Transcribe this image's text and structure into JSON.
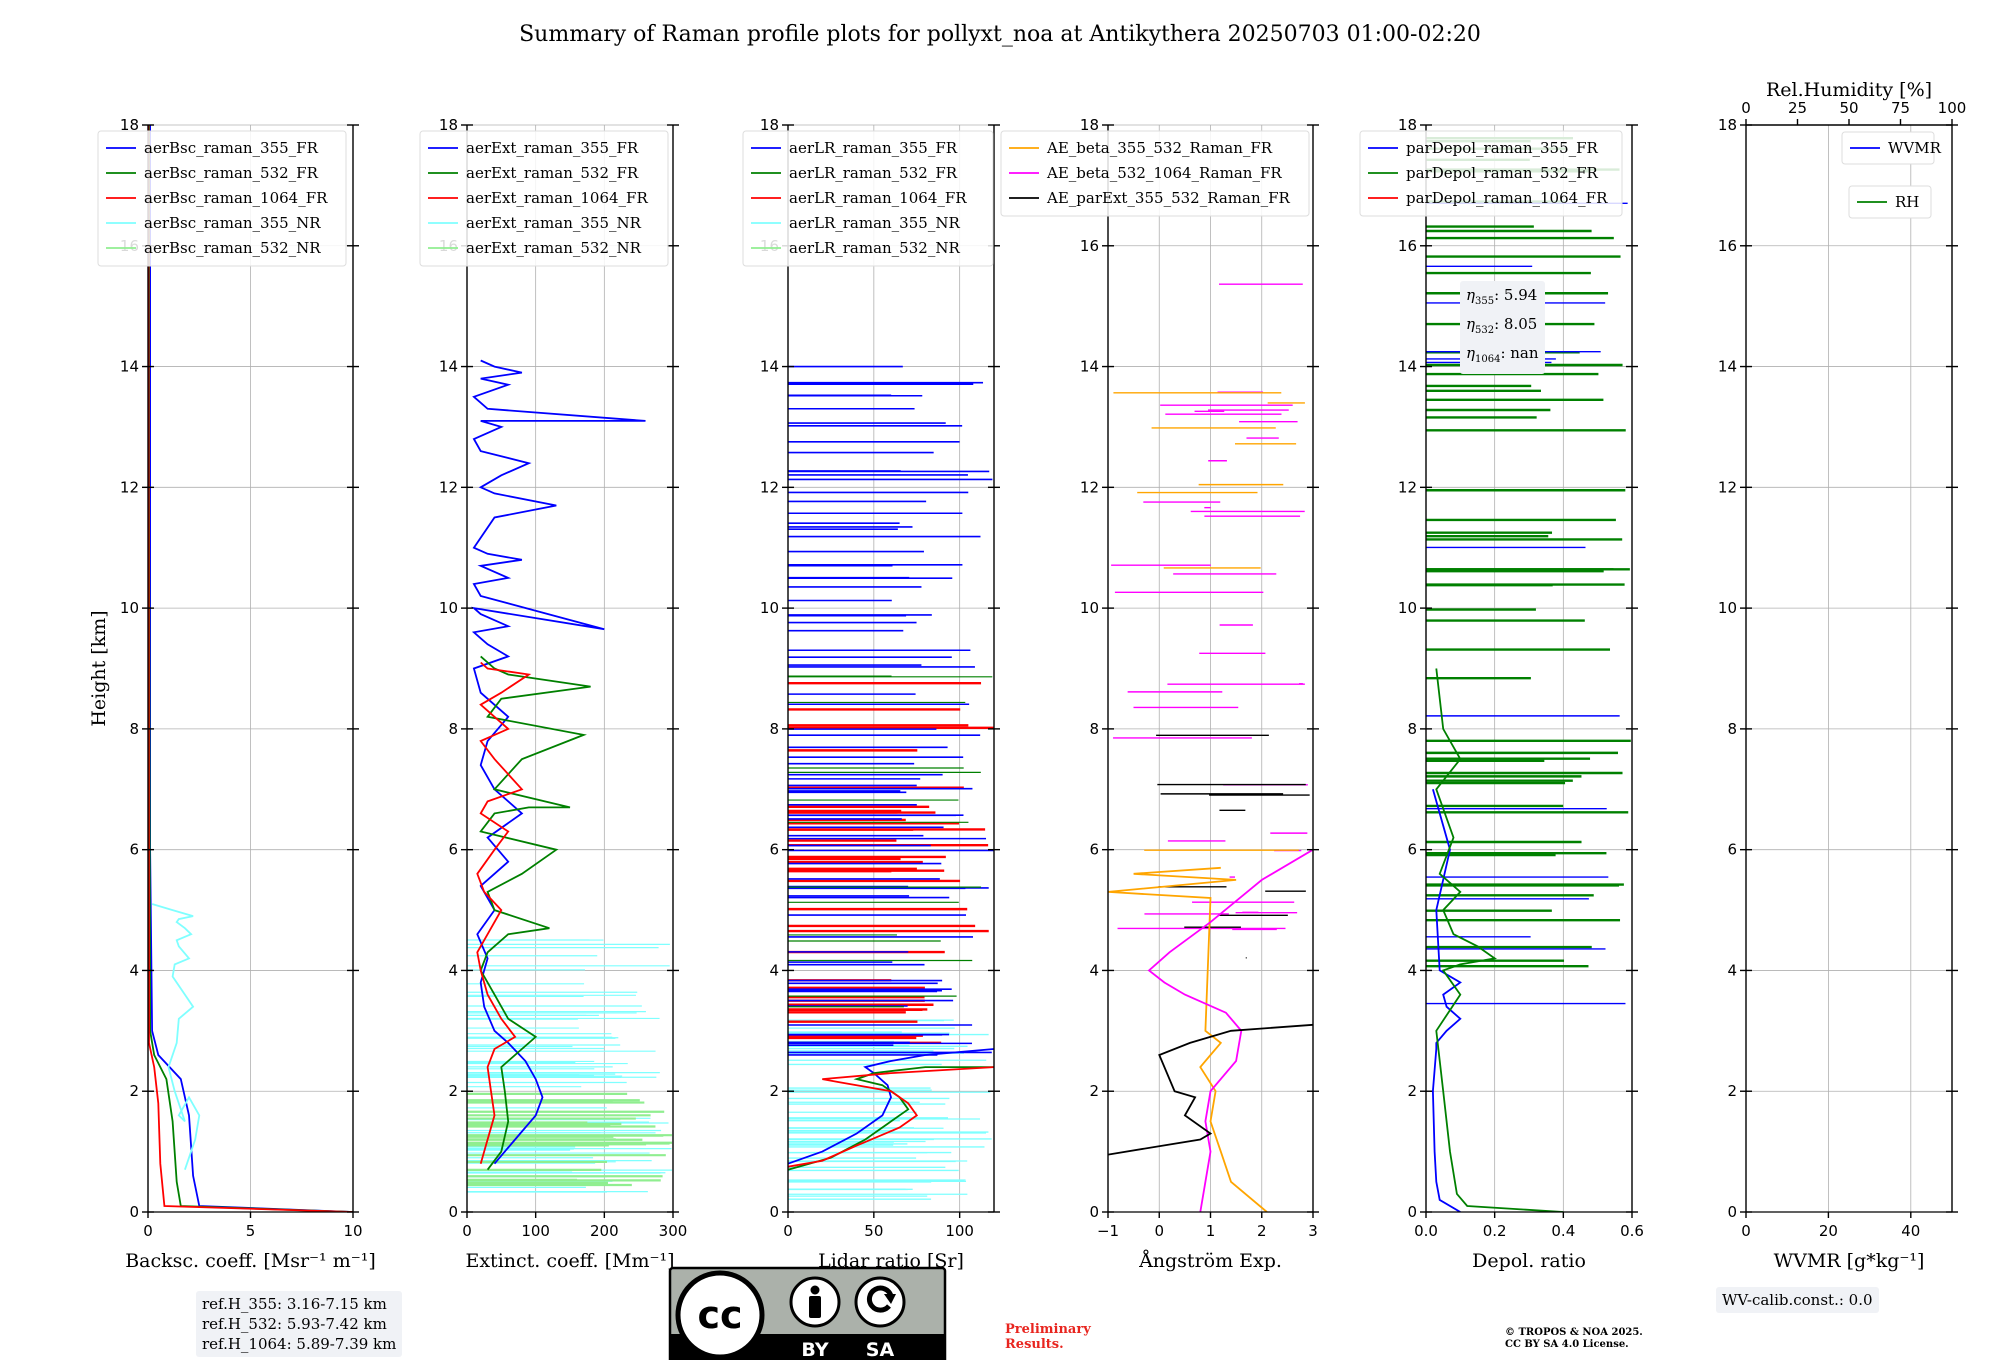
{
  "title": "Summary of Raman profile plots for pollyxt_noa at Antikythera 20250703 01:00-02:20",
  "colors": {
    "blue": "#0000ff",
    "green": "#008000",
    "red": "#ff0000",
    "cyan": "#7fffff",
    "lightgreen": "#90ee90",
    "orange": "#ffa500",
    "magenta": "#ff00ff",
    "black": "#000000"
  },
  "chart_data": [
    {
      "type": "line",
      "ylabel": "Height [km]",
      "xlabel": "Backsc. coeff. [Msr$^{-1}$ m$^{-1}$]",
      "xlabel_display": "Backsc. coeff. [Msr⁻¹ m⁻¹]",
      "xlim": [
        0,
        10
      ],
      "ylim": [
        0,
        18
      ],
      "xticks": [
        "0",
        "5",
        "10"
      ],
      "yticks": [
        "0",
        "2",
        "4",
        "6",
        "8",
        "10",
        "12",
        "14",
        "16",
        "18"
      ],
      "legend": "upper-left",
      "series": [
        {
          "name": "aerBsc_raman_355_FR",
          "color": "#0000ff",
          "x": [
            10,
            2.5,
            2.2,
            2.0,
            1.6,
            0.5,
            0.2,
            0.1,
            0.1,
            0.1
          ],
          "y": [
            0,
            0.1,
            0.6,
            1.6,
            2.2,
            2.6,
            3,
            6,
            12,
            18
          ]
        },
        {
          "name": "aerBsc_raman_532_FR",
          "color": "#008000",
          "x": [
            10,
            1.6,
            1.4,
            1.2,
            0.9,
            0.3,
            0.1,
            0.05,
            0.05
          ],
          "y": [
            0,
            0.1,
            0.5,
            1.5,
            2.2,
            2.6,
            3,
            12,
            18
          ]
        },
        {
          "name": "aerBsc_raman_1064_FR",
          "color": "#ff0000",
          "x": [
            10,
            0.8,
            0.6,
            0.5,
            0.3,
            0.05,
            0.02
          ],
          "y": [
            0,
            0.1,
            0.8,
            1.8,
            2.4,
            2.8,
            18
          ]
        },
        {
          "name": "aerBsc_raman_355_NR",
          "color": "#7fffff",
          "x": [
            1.8,
            2.3,
            2.5,
            2.0,
            1.5,
            1.8,
            1.3,
            1.0,
            1.4,
            1.5,
            2.2,
            1.8,
            1.2,
            1.3,
            2.0,
            1.5,
            1.4,
            2.1,
            1.8,
            1.4,
            1.5,
            2.2,
            1.2,
            0.2
          ],
          "y": [
            0.7,
            1.2,
            1.6,
            1.9,
            1.6,
            1.5,
            2.0,
            2.4,
            2.8,
            3.2,
            3.4,
            3.6,
            3.9,
            4.1,
            4.2,
            4.4,
            4.5,
            4.6,
            4.7,
            4.8,
            4.85,
            4.9,
            5.0,
            5.1
          ]
        },
        {
          "name": "aerBsc_raman_532_NR",
          "color": "#90ee90",
          "x": [],
          "y": []
        }
      ],
      "annotation": [
        "ref.H_355: 3.16-7.15 km",
        "ref.H_532: 5.93-7.42 km",
        "ref.H_1064: 5.89-7.39 km"
      ]
    },
    {
      "type": "line",
      "xlabel": "Extinct. coeff. [Mm$^{-1}$]",
      "xlabel_display": "Extinct. coeff. [Mm⁻¹]",
      "xlim": [
        0,
        300
      ],
      "ylim": [
        0,
        18
      ],
      "xticks": [
        "0",
        "100",
        "200",
        "300"
      ],
      "yticks": [
        "0",
        "2",
        "4",
        "6",
        "8",
        "10",
        "12",
        "14",
        "16",
        "18"
      ],
      "legend": "upper-left",
      "series": [
        {
          "name": "aerExt_raman_355_FR",
          "color": "#0000ff",
          "x": [
            40,
            70,
            100,
            110,
            100,
            85,
            60,
            40,
            25,
            20,
            30,
            15,
            40,
            20,
            60,
            30,
            80,
            40,
            20,
            30,
            60,
            20,
            10,
            60,
            30,
            20,
            10,
            60,
            40,
            20,
            10,
            200,
            20,
            10,
            60,
            20,
            80,
            30,
            10,
            40,
            130,
            40,
            20,
            50,
            90,
            20,
            10,
            50,
            20,
            260,
            30,
            10,
            60,
            20,
            80,
            40,
            20
          ],
          "y": [
            0.8,
            1.2,
            1.6,
            1.9,
            2.2,
            2.5,
            2.8,
            3.0,
            3.4,
            3.8,
            4.2,
            4.6,
            5.0,
            5.4,
            5.8,
            6.2,
            6.6,
            7.0,
            7.4,
            7.8,
            8.2,
            8.6,
            9.0,
            9.2,
            9.4,
            9.5,
            9.6,
            9.7,
            9.8,
            9.9,
            10.0,
            9.65,
            10.2,
            10.4,
            10.5,
            10.7,
            10.8,
            10.9,
            11.0,
            11.5,
            11.7,
            11.9,
            12.0,
            12.2,
            12.4,
            12.6,
            12.8,
            13.0,
            13.1,
            13.1,
            13.3,
            13.5,
            13.7,
            13.8,
            13.9,
            14.0,
            14.1
          ]
        },
        {
          "name": "aerExt_raman_532_FR",
          "color": "#008000",
          "x": [
            30,
            50,
            60,
            55,
            50,
            80,
            100,
            60,
            40,
            20,
            30,
            60,
            120,
            40,
            30,
            80,
            130,
            20,
            40,
            90,
            150,
            40,
            80,
            170,
            30,
            50,
            180,
            60,
            40,
            20
          ],
          "y": [
            0.7,
            1.0,
            1.5,
            2.0,
            2.4,
            2.7,
            2.9,
            3.2,
            3.6,
            4.0,
            4.3,
            4.6,
            4.7,
            5.0,
            5.3,
            5.6,
            6.0,
            6.3,
            6.6,
            6.7,
            6.7,
            7.0,
            7.5,
            7.9,
            8.2,
            8.5,
            8.7,
            8.9,
            9.0,
            9.2
          ]
        },
        {
          "name": "aerExt_raman_1064_FR",
          "color": "#ff0000",
          "x": [
            20,
            30,
            40,
            35,
            30,
            40,
            70,
            50,
            30,
            20,
            15,
            30,
            50,
            25,
            15,
            40,
            60,
            20,
            30,
            80,
            40,
            20,
            60,
            20,
            50,
            90,
            30,
            20
          ],
          "y": [
            0.8,
            1.2,
            1.6,
            2.0,
            2.4,
            2.7,
            2.9,
            3.2,
            3.6,
            4.0,
            4.3,
            4.6,
            5.0,
            5.3,
            5.6,
            6.0,
            6.3,
            6.6,
            6.8,
            7.0,
            7.5,
            7.8,
            8.0,
            8.4,
            8.6,
            8.9,
            9.0,
            9.1
          ]
        },
        {
          "name": "aerExt_raman_355_NR",
          "color": "#7fffff",
          "x": [],
          "y": []
        },
        {
          "name": "aerExt_raman_532_NR",
          "color": "#90ee90",
          "x": [],
          "y": []
        }
      ]
    },
    {
      "type": "line",
      "xlabel": "Lidar ratio [Sr]",
      "xlabel_display": "Lidar ratio [Sr]",
      "xlim": [
        0,
        120
      ],
      "ylim": [
        0,
        18
      ],
      "xticks": [
        "0",
        "50",
        "100"
      ],
      "yticks": [
        "0",
        "2",
        "4",
        "6",
        "8",
        "10",
        "12",
        "14",
        "16",
        "18"
      ],
      "legend": "upper-left",
      "series": [
        {
          "name": "aerLR_raman_355_FR",
          "color": "#0000ff",
          "x": [
            0,
            20,
            40,
            55,
            60,
            58,
            50,
            45,
            60,
            80,
            120
          ],
          "y": [
            0.8,
            1.0,
            1.3,
            1.6,
            1.9,
            2.1,
            2.3,
            2.4,
            2.5,
            2.6,
            2.7
          ]
        },
        {
          "name": "aerLR_raman_532_FR",
          "color": "#008000",
          "x": [
            0,
            25,
            45,
            60,
            70,
            65,
            55,
            40,
            50,
            80,
            120
          ],
          "y": [
            0.7,
            0.9,
            1.2,
            1.5,
            1.7,
            1.9,
            2.1,
            2.2,
            2.3,
            2.4,
            2.4
          ]
        },
        {
          "name": "aerLR_raman_1064_FR",
          "color": "#ff0000",
          "x": [
            0,
            20,
            40,
            65,
            75,
            70,
            60,
            40,
            30,
            20,
            60,
            120
          ],
          "y": [
            0.75,
            0.85,
            1.1,
            1.4,
            1.6,
            1.8,
            2.0,
            2.1,
            2.15,
            2.2,
            2.3,
            2.4
          ]
        },
        {
          "name": "aerLR_raman_355_NR",
          "color": "#7fffff",
          "x": [],
          "y": []
        },
        {
          "name": "aerLR_raman_532_NR",
          "color": "#90ee90",
          "x": [],
          "y": []
        }
      ]
    },
    {
      "type": "line",
      "xlabel": "Ångström Exp.",
      "xlabel_display": "Ångström Exp.",
      "xlim": [
        -1,
        3
      ],
      "ylim": [
        0,
        18
      ],
      "xticks": [
        "−1",
        "0",
        "1",
        "2",
        "3"
      ],
      "yticks": [
        "0",
        "2",
        "4",
        "6",
        "8",
        "10",
        "12",
        "14",
        "16",
        "18"
      ],
      "legend": "upper-left",
      "series": [
        {
          "name": "AE_beta_355_532_Raman_FR",
          "color": "#ffa500",
          "x": [
            2.1,
            1.4,
            1.2,
            1.0,
            1.1,
            0.8,
            1.0,
            1.2,
            0.9,
            1.0,
            -1,
            1.5,
            -0.5,
            1.2
          ],
          "y": [
            0,
            0.5,
            1.0,
            1.5,
            2.0,
            2.4,
            2.6,
            2.8,
            3.0,
            5.2,
            5.3,
            5.5,
            5.6,
            5.7
          ]
        },
        {
          "name": "AE_beta_532_1064_Raman_FR",
          "color": "#ff00ff",
          "x": [
            0.8,
            0.9,
            1.0,
            0.9,
            1.0,
            1.5,
            1.6,
            1.3,
            0.5,
            0.1,
            -0.2,
            0.2,
            1.0,
            2.0,
            3.0
          ],
          "y": [
            0,
            0.5,
            1.0,
            1.5,
            2.0,
            2.5,
            3.0,
            3.3,
            3.6,
            3.8,
            4.0,
            4.3,
            4.8,
            5.5,
            6.0
          ]
        },
        {
          "name": "AE_parExt_355_532_Raman_FR",
          "color": "#000000",
          "x": [
            -1,
            0.8,
            1.0,
            0.5,
            0.7,
            0.3,
            0,
            0.6,
            1.4,
            3.0
          ],
          "y": [
            0.95,
            1.2,
            1.3,
            1.6,
            1.9,
            2.0,
            2.6,
            2.8,
            3.0,
            3.1
          ]
        }
      ]
    },
    {
      "type": "line",
      "xlabel": "Depol. ratio",
      "xlabel_display": "Depol. ratio",
      "xlim": [
        0,
        0.6
      ],
      "ylim": [
        0,
        18
      ],
      "xticks": [
        "0.0",
        "0.2",
        "0.4",
        "0.6"
      ],
      "yticks": [
        "0",
        "2",
        "4",
        "6",
        "8",
        "10",
        "12",
        "14",
        "16",
        "18"
      ],
      "legend": "upper-left",
      "series": [
        {
          "name": "parDepol_raman_355_FR",
          "color": "#0000ff",
          "x": [
            0.1,
            0.04,
            0.03,
            0.025,
            0.02,
            0.03,
            0.03,
            0.06,
            0.1,
            0.06,
            0.05,
            0.1,
            0.04,
            0.03,
            0.07,
            0.02
          ],
          "y": [
            0,
            0.2,
            0.5,
            1.0,
            2.0,
            2.7,
            2.8,
            3.0,
            3.2,
            3.4,
            3.6,
            3.8,
            4.0,
            5.0,
            6.0,
            7.0
          ]
        },
        {
          "name": "parDepol_raman_532_FR",
          "color": "#008000",
          "x": [
            0.4,
            0.12,
            0.09,
            0.07,
            0.05,
            0.03,
            0.1,
            0.05,
            0.1,
            0.2,
            0.15,
            0.08,
            0.05,
            0.1,
            0.04,
            0.08,
            0.03,
            0.1,
            0.05,
            0.03
          ],
          "y": [
            0,
            0.1,
            0.3,
            1.0,
            2.0,
            3.0,
            3.6,
            4.0,
            4.1,
            4.2,
            4.4,
            4.6,
            5.0,
            5.3,
            5.6,
            6.2,
            7.0,
            7.5,
            8.0,
            9.0
          ]
        },
        {
          "name": "parDepol_raman_1064_FR",
          "color": "#ff0000",
          "x": [],
          "y": []
        }
      ],
      "annotation": [
        {
          "label": "η",
          "sub": "355",
          "value": ": 5.94"
        },
        {
          "label": "η",
          "sub": "532",
          "value": ": 8.05"
        },
        {
          "label": "η",
          "sub": "1064",
          "value": ": nan"
        }
      ]
    },
    {
      "type": "line",
      "xlabel": "WVMR [$g*kg^{-1}$]",
      "xlabel_display": "WVMR [g*kg⁻¹]",
      "xlim": [
        0,
        50
      ],
      "ylim": [
        0,
        18
      ],
      "xticks": [
        "0",
        "20",
        "40"
      ],
      "yticks": [
        "0",
        "2",
        "4",
        "6",
        "8",
        "10",
        "12",
        "14",
        "16",
        "18"
      ],
      "top_xlabel": "Rel.Humidity [%]",
      "top_xticks": [
        "0",
        "25",
        "50",
        "75",
        "100"
      ],
      "series": [
        {
          "name": "WVMR",
          "color": "#0000ff",
          "x": [],
          "y": []
        },
        {
          "name": "RH",
          "color": "#008000",
          "x": [],
          "y": []
        }
      ],
      "annotation": [
        "WV-calib.const.: 0.0"
      ]
    }
  ],
  "logo": {
    "cc": "cc",
    "by": "BY",
    "sa": "SA"
  },
  "preliminary": [
    "Preliminary",
    "Results."
  ],
  "copyright": [
    "© TROPOS & NOA 2025.",
    "CC BY SA 4.0 License."
  ]
}
